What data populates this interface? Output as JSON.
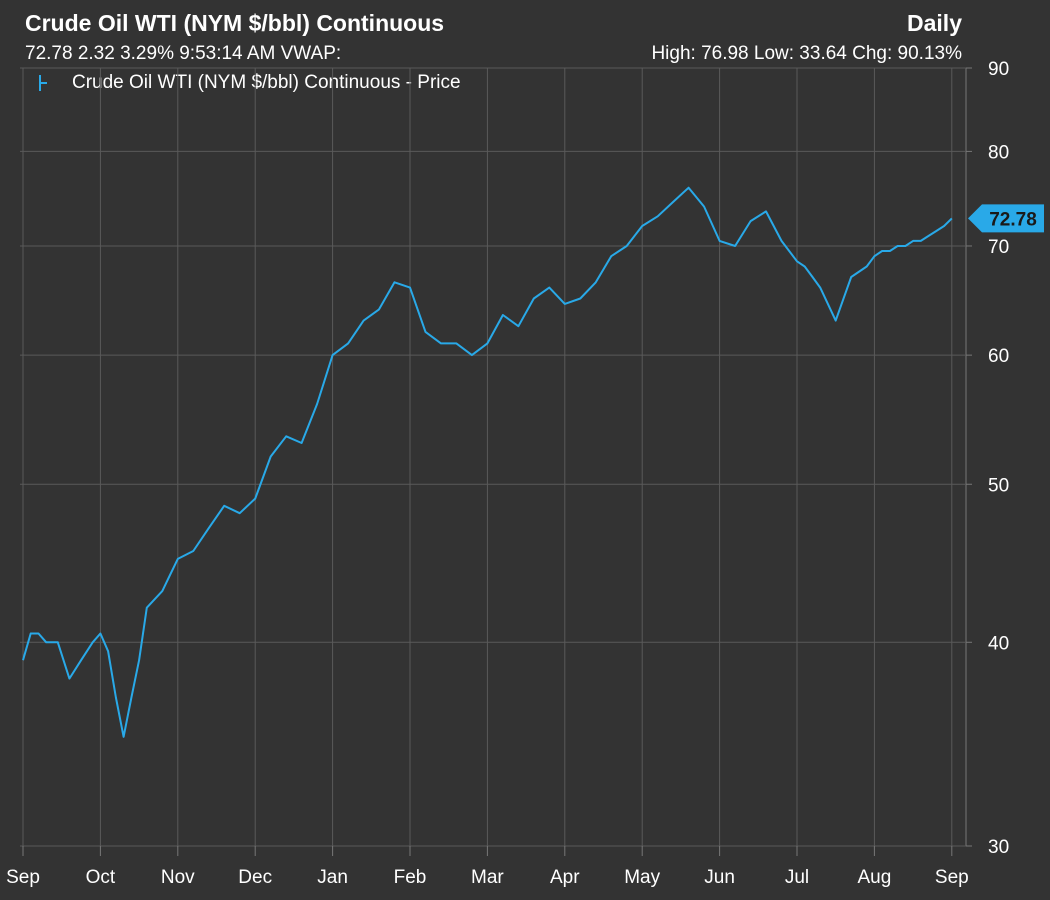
{
  "header": {
    "title": "Crude Oil WTI (NYM $/bbl) Continuous",
    "frequency": "Daily",
    "quote": "72.78 2.32 3.29% 9:53:14 AM VWAP:",
    "stats": "High: 76.98 Low: 33.64 Chg: 90.13%"
  },
  "colors": {
    "background": "#333333",
    "grid": "#5a5a5a",
    "series": "#29a9e8",
    "text": "#ffffff"
  },
  "chart_data": {
    "type": "line",
    "title": "Crude Oil WTI (NYM $/bbl) Continuous",
    "subtitle": "Daily",
    "y_scale": "log",
    "ylim": [
      30,
      90
    ],
    "y_ticks": [
      30,
      40,
      50,
      60,
      70,
      80,
      90
    ],
    "x_ticks": [
      "Sep",
      "Oct",
      "Nov",
      "Dec",
      "Jan",
      "Feb",
      "Mar",
      "Apr",
      "May",
      "Jun",
      "Jul",
      "Aug",
      "Sep"
    ],
    "grid": true,
    "legend": {
      "position": "top-left",
      "entries": [
        "Crude Oil WTI (NYM $/bbl) Continuous - Price"
      ]
    },
    "last_value_label": "72.78",
    "series": [
      {
        "name": "Crude Oil WTI (NYM $/bbl) Continuous - Price",
        "x_month_index": [
          0,
          0.1,
          0.2,
          0.3,
          0.45,
          0.6,
          0.75,
          0.9,
          1.0,
          1.1,
          1.2,
          1.3,
          1.4,
          1.5,
          1.6,
          1.7,
          1.8,
          1.9,
          2.0,
          2.2,
          2.4,
          2.6,
          2.8,
          3.0,
          3.2,
          3.4,
          3.6,
          3.8,
          4.0,
          4.2,
          4.4,
          4.6,
          4.8,
          5.0,
          5.2,
          5.4,
          5.6,
          5.8,
          6.0,
          6.2,
          6.4,
          6.6,
          6.8,
          7.0,
          7.2,
          7.4,
          7.6,
          7.8,
          8.0,
          8.2,
          8.4,
          8.6,
          8.8,
          9.0,
          9.2,
          9.4,
          9.6,
          9.8,
          10.0,
          10.1,
          10.2,
          10.3,
          10.5,
          10.7,
          10.9,
          11.0,
          11.1,
          11.2,
          11.3,
          11.4,
          11.5,
          11.6,
          11.7,
          11.8,
          11.9,
          12.0
        ],
        "values": [
          39,
          40.5,
          40.5,
          40,
          40,
          38,
          39,
          40,
          40.5,
          39.5,
          37,
          35,
          37,
          39,
          42,
          42.5,
          43,
          44,
          45,
          45.5,
          47,
          48.5,
          48,
          49,
          52,
          53.5,
          53,
          56,
          60,
          61,
          63,
          64,
          66.5,
          66,
          62,
          61,
          61,
          60,
          61,
          63.5,
          62.5,
          65,
          66,
          64.5,
          65,
          66.5,
          69,
          70,
          72,
          73,
          74.5,
          76,
          74,
          70.5,
          70,
          72.5,
          73.5,
          70.5,
          68.5,
          68,
          67,
          66,
          63,
          67,
          68,
          69,
          69.5,
          69.5,
          70,
          70,
          70.5,
          70.5,
          71,
          71.5,
          72,
          72.78
        ]
      }
    ]
  }
}
